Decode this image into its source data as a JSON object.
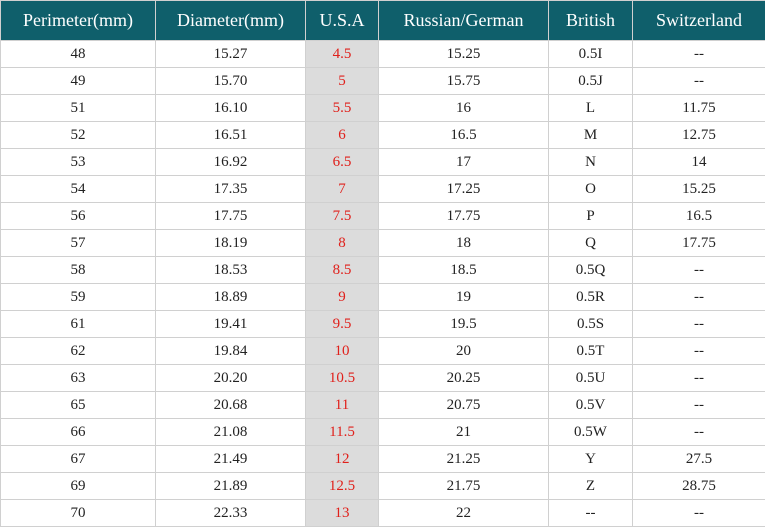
{
  "table": {
    "header": [
      "Perimeter(mm)",
      "Diameter(mm)",
      "U.S.A",
      "Russian/German",
      "British",
      "Switzerland"
    ],
    "rows": [
      [
        "48",
        "15.27",
        "4.5",
        "15.25",
        "0.5I",
        "--"
      ],
      [
        "49",
        "15.70",
        "5",
        "15.75",
        "0.5J",
        "--"
      ],
      [
        "51",
        "16.10",
        "5.5",
        "16",
        "L",
        "11.75"
      ],
      [
        "52",
        "16.51",
        "6",
        "16.5",
        "M",
        "12.75"
      ],
      [
        "53",
        "16.92",
        "6.5",
        "17",
        "N",
        "14"
      ],
      [
        "54",
        "17.35",
        "7",
        "17.25",
        "O",
        "15.25"
      ],
      [
        "56",
        "17.75",
        "7.5",
        "17.75",
        "P",
        "16.5"
      ],
      [
        "57",
        "18.19",
        "8",
        "18",
        "Q",
        "17.75"
      ],
      [
        "58",
        "18.53",
        "8.5",
        "18.5",
        "0.5Q",
        "--"
      ],
      [
        "59",
        "18.89",
        "9",
        "19",
        "0.5R",
        "--"
      ],
      [
        "61",
        "19.41",
        "9.5",
        "19.5",
        "0.5S",
        "--"
      ],
      [
        "62",
        "19.84",
        "10",
        "20",
        "0.5T",
        "--"
      ],
      [
        "63",
        "20.20",
        "10.5",
        "20.25",
        "0.5U",
        "--"
      ],
      [
        "65",
        "20.68",
        "11",
        "20.75",
        "0.5V",
        "--"
      ],
      [
        "66",
        "21.08",
        "11.5",
        "21",
        "0.5W",
        "--"
      ],
      [
        "67",
        "21.49",
        "12",
        "21.25",
        "Y",
        "27.5"
      ],
      [
        "69",
        "21.89",
        "12.5",
        "21.75",
        "Z",
        "28.75"
      ],
      [
        "70",
        "22.33",
        "13",
        "22",
        "--",
        "--"
      ]
    ]
  }
}
